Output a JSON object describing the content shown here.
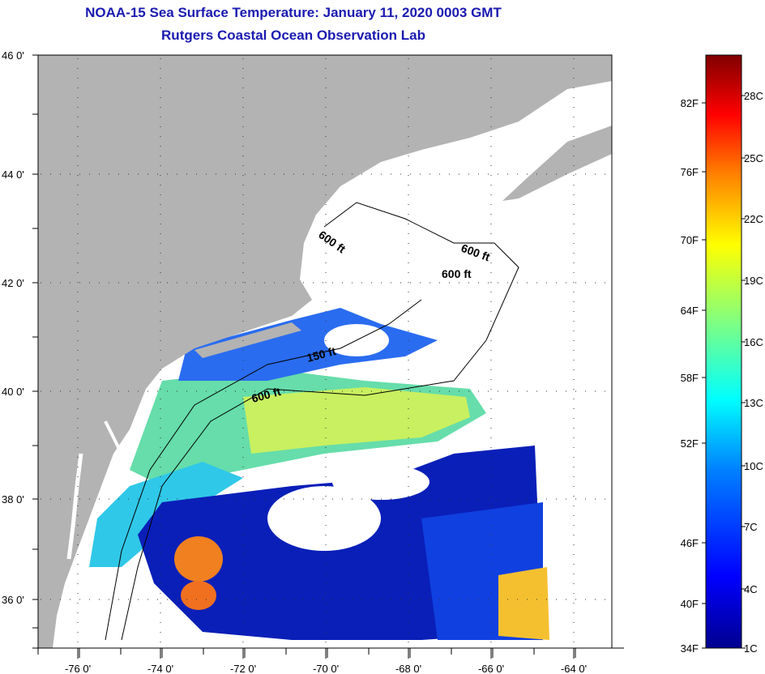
{
  "title_line1": "NOAA-15 Sea Surface Temperature:  January 11, 2020 0003 GMT",
  "title_line2": "Rutgers Coastal Ocean Observation Lab",
  "lon_labels": [
    "-76 0'",
    "-74 0'",
    "-72 0'",
    "-70 0'",
    "-68 0'",
    "-66 0'",
    "-64 0'"
  ],
  "lat_labels": [
    "46 0'",
    "44 0'",
    "42 0'",
    "40 0'",
    "38 0'",
    "36 0'"
  ],
  "contour_labels": [
    "600 ft",
    "600 ft",
    "600 ft",
    "150 ft",
    "600 ft"
  ],
  "colorbar": {
    "fahrenheit_labels": [
      "34F",
      "40F",
      "46F",
      "52F",
      "58F",
      "64F",
      "70F",
      "76F",
      "82F"
    ],
    "celsius_labels": [
      "1C",
      "4C",
      "7C",
      "10C",
      "13C",
      "16C",
      "19C",
      "22C",
      "25C",
      "28C"
    ],
    "colors": [
      "#00008f",
      "#0000ff",
      "#0080ff",
      "#00ffff",
      "#80ff80",
      "#ffff00",
      "#ff8000",
      "#ff0000",
      "#800000"
    ]
  },
  "colors": {
    "land": "#b3b3b3",
    "title": "#1a1ab0"
  }
}
